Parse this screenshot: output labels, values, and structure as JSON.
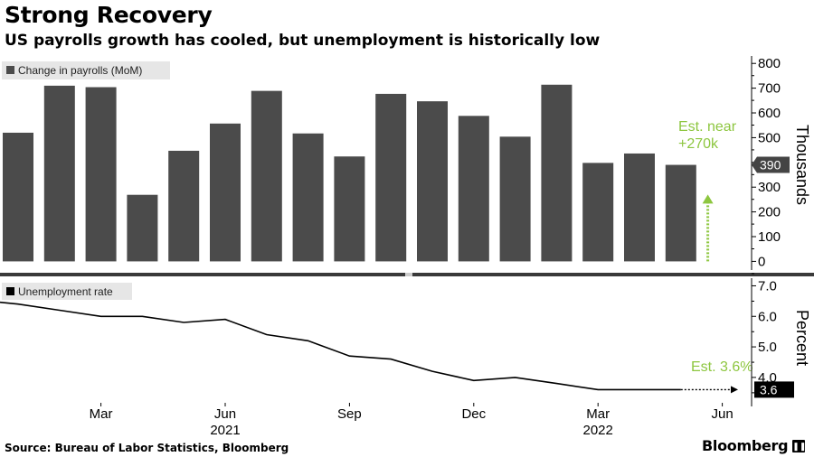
{
  "title": "Strong Recovery",
  "subtitle": "US payrolls growth has cooled, but unemployment is historically low",
  "source": "Source: Bureau of Labor Statistics, Bloomberg",
  "brand": "Bloomberg",
  "colors": {
    "bar": "#4b4b4b",
    "line": "#000000",
    "annotation": "#8dc63f",
    "legend_bg": "#e6e6e6",
    "separator": "#3a3a3a",
    "tag": "#444444"
  },
  "chart_data": [
    {
      "type": "bar",
      "legend": "Change in payrolls (MoM)",
      "ylabel": "Thousands",
      "ylim": [
        -35,
        830
      ],
      "yticks": [
        0,
        100,
        200,
        300,
        400,
        500,
        600,
        700,
        800
      ],
      "x": [
        "2021-01",
        "2021-02",
        "2021-03",
        "2021-04",
        "2021-05",
        "2021-06",
        "2021-07",
        "2021-08",
        "2021-09",
        "2021-10",
        "2021-11",
        "2021-12",
        "2022-01",
        "2022-02",
        "2022-03",
        "2022-04",
        "2022-05"
      ],
      "values": [
        520,
        710,
        704,
        269,
        447,
        557,
        689,
        517,
        424,
        677,
        647,
        588,
        504,
        714,
        398,
        436,
        390
      ],
      "last_value_label": "390",
      "annotation": {
        "text": [
          "Est. near",
          "+270k"
        ],
        "value": 270
      }
    },
    {
      "type": "line",
      "legend": "Unemployment rate",
      "ylabel": "Percent",
      "ylim": [
        3.05,
        7.25
      ],
      "yticks": [
        "7.0",
        "6.0",
        "5.0",
        "4.0"
      ],
      "x": [
        "2021-01",
        "2021-02",
        "2021-03",
        "2021-04",
        "2021-05",
        "2021-06",
        "2021-07",
        "2021-08",
        "2021-09",
        "2021-10",
        "2021-11",
        "2021-12",
        "2022-01",
        "2022-02",
        "2022-03",
        "2022-04",
        "2022-05"
      ],
      "values": [
        6.4,
        6.2,
        6.0,
        6.0,
        5.8,
        5.9,
        5.4,
        5.2,
        4.7,
        4.6,
        4.2,
        3.9,
        4.0,
        3.8,
        3.6,
        3.6,
        3.6
      ],
      "last_value_label": "3.6",
      "annotation": {
        "text": "Est. 3.6%",
        "value": 3.6
      }
    }
  ],
  "x_axis": {
    "tick_labels": [
      {
        "label": "Mar",
        "at": "2021-03"
      },
      {
        "label": "Jun",
        "at": "2021-06"
      },
      {
        "label": "Sep",
        "at": "2021-09"
      },
      {
        "label": "Dec",
        "at": "2021-12"
      },
      {
        "label": "Mar",
        "at": "2022-03"
      },
      {
        "label": "Jun",
        "at": "2022-06"
      }
    ],
    "year_labels": [
      {
        "label": "2021",
        "at": "2021-06"
      },
      {
        "label": "2022",
        "at": "2022-03"
      }
    ]
  }
}
